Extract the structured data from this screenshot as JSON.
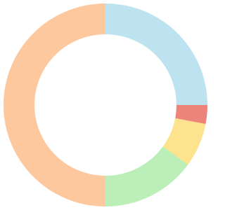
{
  "chart_data": {
    "type": "donut",
    "values": [
      25,
      3,
      7,
      15,
      50
    ],
    "colors": [
      "#bde3f0",
      "#ec8479",
      "#fde38d",
      "#bcefb8",
      "#fec89e"
    ]
  }
}
